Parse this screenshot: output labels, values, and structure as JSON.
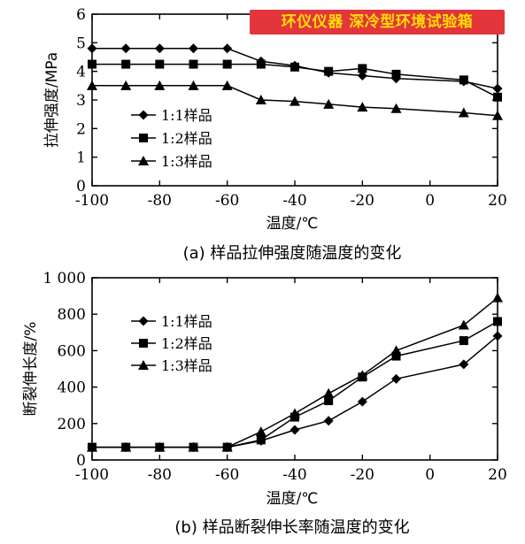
{
  "watermark": "环仪仪器 深冷型环境试验箱",
  "chart_data": [
    {
      "type": "line",
      "caption": "(a) 样品拉伸强度随温度的变化",
      "xlabel": "温度/℃",
      "ylabel": "拉伸强度/MPa",
      "xlim": [
        -100,
        20
      ],
      "ylim": [
        0,
        6
      ],
      "x_ticks": [
        -100,
        -80,
        -60,
        -40,
        -20,
        0,
        20
      ],
      "x_tick_labels": [
        "-100",
        "-80",
        "-60",
        "-40",
        "-20",
        "0",
        "20"
      ],
      "y_ticks": [
        0,
        1,
        2,
        3,
        4,
        5,
        6
      ],
      "y_tick_labels": [
        "0",
        "1",
        "2",
        "3",
        "4",
        "5",
        "6"
      ],
      "legend_position": "lower-left",
      "series": [
        {
          "name": "1:1样品",
          "marker": "diamond",
          "x": [
            -100,
            -90,
            -80,
            -70,
            -60,
            -50,
            -40,
            -30,
            -20,
            -10,
            10,
            20
          ],
          "y": [
            4.8,
            4.8,
            4.8,
            4.8,
            4.8,
            4.35,
            4.2,
            3.95,
            3.85,
            3.75,
            3.65,
            3.4
          ]
        },
        {
          "name": "1:2样品",
          "marker": "square",
          "x": [
            -100,
            -90,
            -80,
            -70,
            -60,
            -50,
            -40,
            -30,
            -20,
            -10,
            10,
            20
          ],
          "y": [
            4.25,
            4.25,
            4.25,
            4.25,
            4.25,
            4.25,
            4.15,
            4.0,
            4.1,
            3.9,
            3.7,
            3.1
          ]
        },
        {
          "name": "1:3样品",
          "marker": "triangle",
          "x": [
            -100,
            -90,
            -80,
            -70,
            -60,
            -50,
            -40,
            -30,
            -20,
            -10,
            10,
            20
          ],
          "y": [
            3.5,
            3.5,
            3.5,
            3.5,
            3.5,
            3.0,
            2.95,
            2.85,
            2.75,
            2.7,
            2.55,
            2.45
          ]
        }
      ]
    },
    {
      "type": "line",
      "caption": "(b) 样品断裂伸长率随温度的变化",
      "xlabel": "温度/℃",
      "ylabel": "断裂伸长度/%",
      "xlim": [
        -100,
        20
      ],
      "ylim": [
        0,
        1000
      ],
      "x_ticks": [
        -100,
        -80,
        -60,
        -40,
        -20,
        0,
        20
      ],
      "x_tick_labels": [
        "-100",
        "-80",
        "-60",
        "-40",
        "-20",
        "0",
        "20"
      ],
      "y_ticks": [
        0,
        200,
        400,
        600,
        800,
        1000
      ],
      "y_tick_labels": [
        "0",
        "200",
        "400",
        "600",
        "800",
        "1 000"
      ],
      "legend_position": "top-left",
      "series": [
        {
          "name": "1:1样品",
          "marker": "diamond",
          "x": [
            -100,
            -90,
            -80,
            -70,
            -60,
            -50,
            -40,
            -30,
            -20,
            -10,
            10,
            20
          ],
          "y": [
            70,
            70,
            70,
            70,
            70,
            105,
            165,
            215,
            320,
            445,
            525,
            680
          ]
        },
        {
          "name": "1:2样品",
          "marker": "square",
          "x": [
            -100,
            -90,
            -80,
            -70,
            -60,
            -50,
            -40,
            -30,
            -20,
            -10,
            10,
            20
          ],
          "y": [
            70,
            70,
            70,
            70,
            70,
            110,
            235,
            325,
            455,
            570,
            655,
            760
          ]
        },
        {
          "name": "1:3样品",
          "marker": "triangle",
          "x": [
            -100,
            -90,
            -80,
            -70,
            -60,
            -50,
            -40,
            -30,
            -20,
            -10,
            10,
            20
          ],
          "y": [
            70,
            70,
            70,
            70,
            70,
            155,
            255,
            365,
            465,
            600,
            740,
            890
          ]
        }
      ]
    }
  ]
}
